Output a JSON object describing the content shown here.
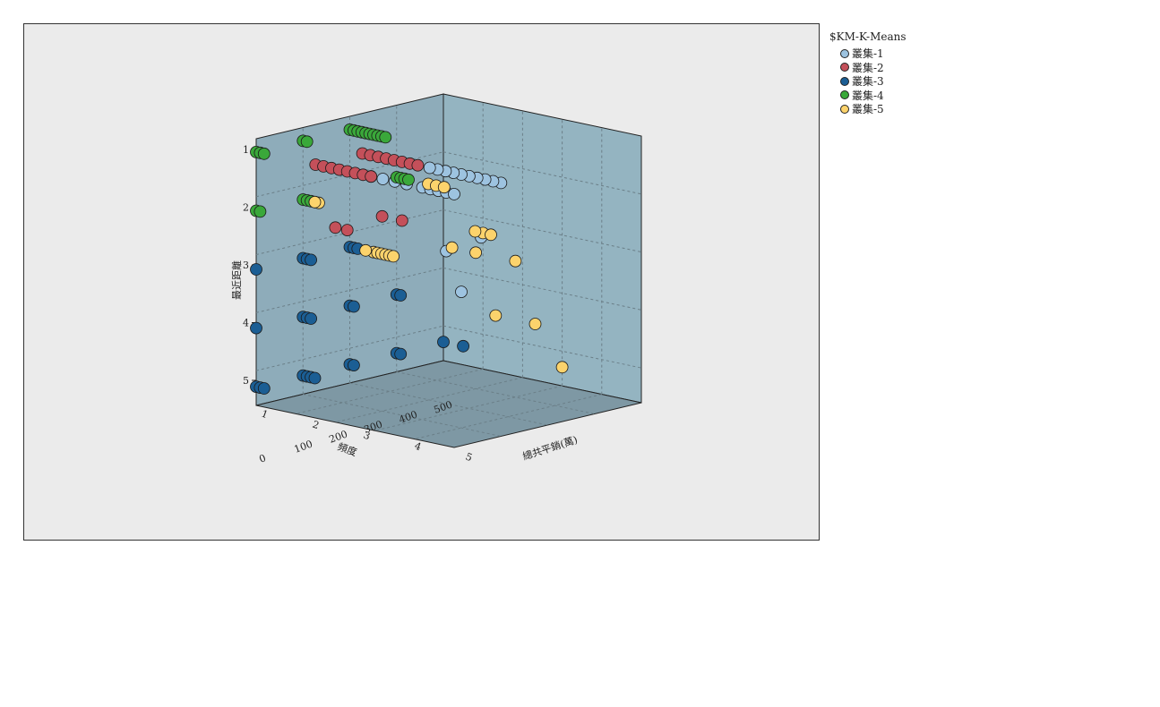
{
  "chart_data": {
    "type": "scatter3d",
    "legend_title": "$KM-K-Means",
    "legend_position": "right",
    "grid": true,
    "axes": {
      "x": {
        "label": "頻度",
        "ticks": [
          "1",
          "2",
          "3",
          "4",
          "5"
        ]
      },
      "y": {
        "label": "總共平銷(萬)",
        "ticks": [
          "0",
          "100",
          "200",
          "300",
          "400",
          "500"
        ]
      },
      "z": {
        "label": "最近距離",
        "ticks": [
          "1",
          "2",
          "3",
          "4",
          "5"
        ]
      }
    },
    "series": [
      {
        "name": "叢集-1",
        "color": "#9dc3e0",
        "points": []
      },
      {
        "name": "叢集-2",
        "color": "#c4505a",
        "points": []
      },
      {
        "name": "叢集-3",
        "color": "#1b5e94",
        "points": []
      },
      {
        "name": "叢集-4",
        "color": "#3aa83a",
        "points": []
      },
      {
        "name": "叢集-5",
        "color": "#fcd36c",
        "points": []
      }
    ]
  }
}
